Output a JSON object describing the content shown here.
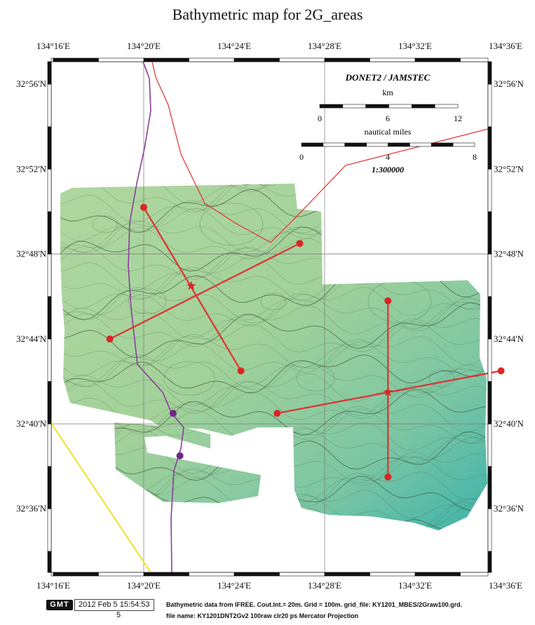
{
  "title": "Bathymetric map for 2G_areas",
  "axes": {
    "lon_labels": [
      "134°16'E",
      "134°20'E",
      "134°24'E",
      "134°28'E",
      "134°32'E",
      "134°36'E"
    ],
    "lat_labels": [
      "32°56'N",
      "32°52'N",
      "32°48'N",
      "32°44'N",
      "32°40'N",
      "32°36'N"
    ]
  },
  "scalebar": {
    "title": "DONET2 / JAMSTEC",
    "km_label": "km",
    "km_ticks": [
      "0",
      "6",
      "12"
    ],
    "nm_label": "nautical miles",
    "nm_ticks": [
      "0",
      "4",
      "8"
    ],
    "scale": "1:300000"
  },
  "footer": {
    "logo": "GMT",
    "timestamp": "2012 Feb  5 15:54:53",
    "page": "5",
    "note_line1": "Bathymetric data from IFREE. Cout.Int.= 20m. Grid = 100m.  grid_file: KY1201_MBES/2Graw100.grd.",
    "note_line2": "file  name: KY1201DNT2Gv2  100raw  clr20 ps  Mercator Projection"
  },
  "colors": {
    "survey_light": "#a8d39c",
    "survey_deep": "#49b5a6",
    "route_red": "#e03030",
    "cable_purple": "#8a3e9a",
    "coast_yellow": "#f2e02a",
    "node_red": "#d92626",
    "node_purple": "#6e2a86"
  },
  "stations": [
    {
      "id": "A1",
      "lon_min": 20.0,
      "lat_min": 50.2
    },
    {
      "id": "A2",
      "lon_min": 26.9,
      "lat_min": 48.5
    },
    {
      "id": "A3",
      "lon_min": 18.5,
      "lat_min": 44.0
    },
    {
      "id": "A4",
      "lon_min": 24.3,
      "lat_min": 42.5
    },
    {
      "id": "B1",
      "lon_min": 30.8,
      "lat_min": 45.8
    },
    {
      "id": "B2",
      "lon_min": 35.8,
      "lat_min": 42.5
    },
    {
      "id": "B3",
      "lon_min": 25.9,
      "lat_min": 40.5
    },
    {
      "id": "B4",
      "lon_min": 30.8,
      "lat_min": 37.5
    }
  ],
  "hubs": [
    {
      "id": "HUB-A",
      "lon_min": 22.1,
      "lat_min": 46.5
    },
    {
      "id": "HUB-B",
      "lon_min": 30.8,
      "lat_min": 41.5
    }
  ],
  "cable_nodes": [
    {
      "id": "P1",
      "lon_min": 21.3,
      "lat_min": 40.5
    },
    {
      "id": "P2",
      "lon_min": 21.6,
      "lat_min": 38.5
    }
  ]
}
